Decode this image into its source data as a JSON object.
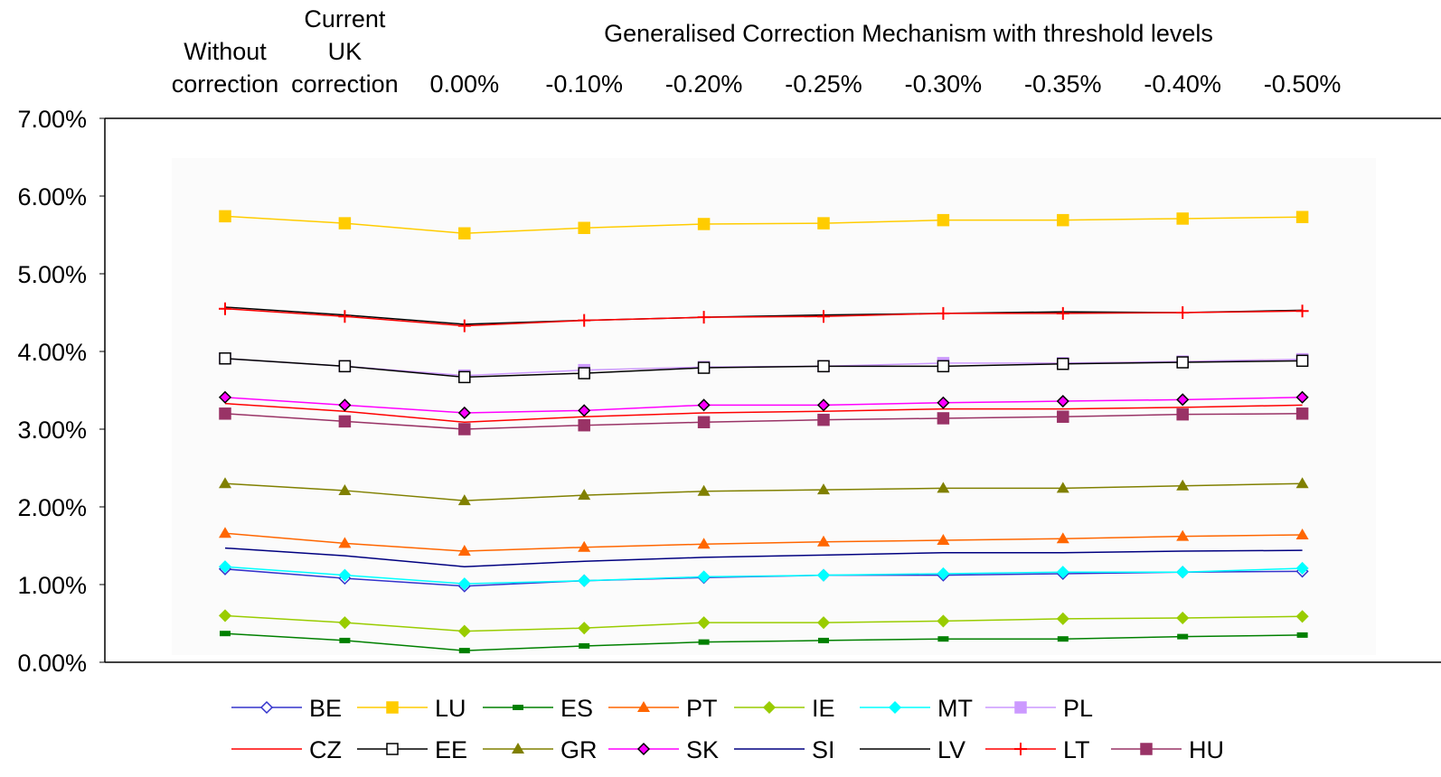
{
  "chart_data": {
    "type": "line",
    "title": "Generalised Correction Mechanism with threshold levels",
    "categories": [
      "Without correction",
      "Current UK correction",
      "0.00%",
      "-0.10%",
      "-0.20%",
      "-0.25%",
      "-0.30%",
      "-0.35%",
      "-0.40%",
      "-0.50%"
    ],
    "ylim": [
      0,
      7
    ],
    "yticks": [
      {
        "value": 0,
        "label": "0.00%"
      },
      {
        "value": 1,
        "label": "1.00%"
      },
      {
        "value": 2,
        "label": "2.00%"
      },
      {
        "value": 3,
        "label": "3.00%"
      },
      {
        "value": 4,
        "label": "4.00%"
      },
      {
        "value": 5,
        "label": "5.00%"
      },
      {
        "value": 6,
        "label": "6.00%"
      },
      {
        "value": 7,
        "label": "7.00%"
      }
    ],
    "series": [
      {
        "name": "BE",
        "color": "#3333cc",
        "marker": "diamond-open",
        "values": [
          1.2,
          1.08,
          0.98,
          1.05,
          1.09,
          1.12,
          1.12,
          1.14,
          1.16,
          1.17
        ]
      },
      {
        "name": "LU",
        "color": "#ffcc00",
        "marker": "square",
        "values": [
          5.74,
          5.65,
          5.52,
          5.59,
          5.64,
          5.65,
          5.69,
          5.69,
          5.71,
          5.73
        ]
      },
      {
        "name": "ES",
        "color": "#008000",
        "marker": "dash",
        "values": [
          0.37,
          0.28,
          0.15,
          0.21,
          0.26,
          0.28,
          0.3,
          0.3,
          0.33,
          0.35
        ]
      },
      {
        "name": "PT",
        "color": "#ff6600",
        "marker": "triangle",
        "values": [
          1.66,
          1.53,
          1.43,
          1.48,
          1.52,
          1.55,
          1.57,
          1.59,
          1.62,
          1.64
        ]
      },
      {
        "name": "IE",
        "color": "#99cc00",
        "marker": "diamond",
        "values": [
          0.6,
          0.51,
          0.4,
          0.44,
          0.51,
          0.51,
          0.53,
          0.56,
          0.57,
          0.59
        ]
      },
      {
        "name": "MT",
        "color": "#00ffff",
        "marker": "diamond",
        "values": [
          1.23,
          1.12,
          1.01,
          1.05,
          1.1,
          1.12,
          1.14,
          1.16,
          1.16,
          1.21
        ]
      },
      {
        "name": "PL",
        "color": "#cc99ff",
        "marker": "square",
        "values": [
          3.91,
          3.81,
          3.69,
          3.76,
          3.8,
          3.81,
          3.85,
          3.85,
          3.87,
          3.9
        ]
      },
      {
        "name": "CZ",
        "color": "#ff0000",
        "marker": "none",
        "values": [
          3.33,
          3.23,
          3.09,
          3.16,
          3.21,
          3.23,
          3.26,
          3.26,
          3.28,
          3.31
        ]
      },
      {
        "name": "EE",
        "color": "#000000",
        "marker": "square-open",
        "values": [
          3.91,
          3.81,
          3.67,
          3.72,
          3.79,
          3.81,
          3.81,
          3.84,
          3.86,
          3.88
        ]
      },
      {
        "name": "GR",
        "color": "#808000",
        "marker": "triangle",
        "values": [
          2.3,
          2.21,
          2.08,
          2.15,
          2.2,
          2.22,
          2.24,
          2.24,
          2.27,
          2.3
        ]
      },
      {
        "name": "SK",
        "color": "#ff00ff",
        "marker": "diamond-dark",
        "values": [
          3.41,
          3.31,
          3.21,
          3.24,
          3.31,
          3.31,
          3.34,
          3.36,
          3.38,
          3.41
        ]
      },
      {
        "name": "SI",
        "color": "#000080",
        "marker": "none",
        "values": [
          1.47,
          1.37,
          1.23,
          1.3,
          1.35,
          1.38,
          1.41,
          1.41,
          1.43,
          1.44
        ]
      },
      {
        "name": "LV",
        "color": "#000000",
        "marker": "none",
        "values": [
          4.57,
          4.47,
          4.35,
          4.4,
          4.44,
          4.47,
          4.49,
          4.51,
          4.5,
          4.53
        ]
      },
      {
        "name": "LT",
        "color": "#ff0000",
        "marker": "plus",
        "values": [
          4.55,
          4.45,
          4.33,
          4.4,
          4.44,
          4.45,
          4.49,
          4.49,
          4.5,
          4.52
        ]
      },
      {
        "name": "HU",
        "color": "#993366",
        "marker": "square",
        "values": [
          3.2,
          3.1,
          3.0,
          3.05,
          3.09,
          3.12,
          3.14,
          3.16,
          3.19,
          3.2
        ]
      }
    ]
  }
}
